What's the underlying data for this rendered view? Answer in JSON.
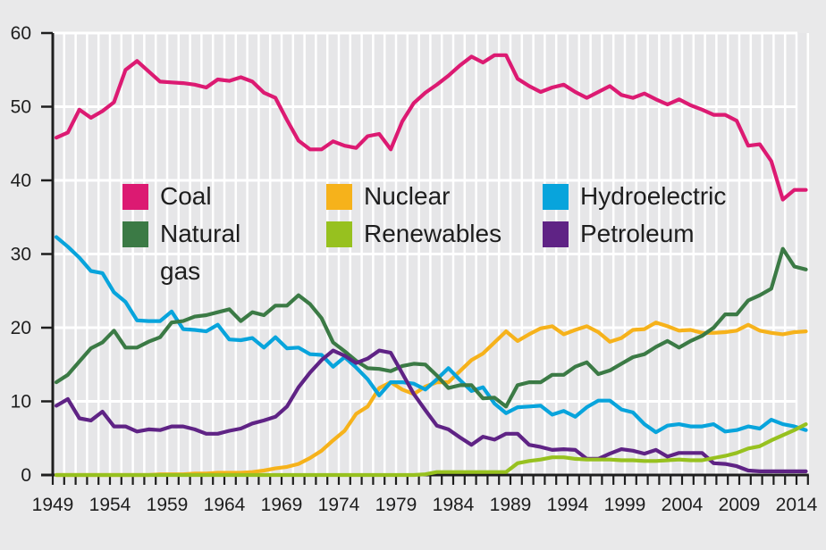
{
  "chart_data": {
    "type": "line",
    "title": "",
    "xlabel": "",
    "ylabel": "",
    "xlim": [
      1949,
      2015
    ],
    "ylim": [
      0,
      60
    ],
    "grid": true,
    "legend_position": "center-top (inside plot, three columns)",
    "x_start_year": 1949,
    "x_tick_labels": [
      "1949",
      "1954",
      "1959",
      "1964",
      "1969",
      "1974",
      "1979",
      "1984",
      "1989",
      "1994",
      "1999",
      "2004",
      "2009",
      "2014"
    ],
    "y_tick_labels": [
      "0",
      "10",
      "20",
      "30",
      "40",
      "50",
      "60"
    ],
    "series": [
      {
        "name": "Coal",
        "color": "#dc1a72",
        "values": [
          45.8,
          46.5,
          49.6,
          48.5,
          49.4,
          50.6,
          55.0,
          56.2,
          54.8,
          53.4,
          53.3,
          53.2,
          53.0,
          52.6,
          53.7,
          53.5,
          54.0,
          53.4,
          51.9,
          51.2,
          48.2,
          45.4,
          44.2,
          44.2,
          45.3,
          44.7,
          44.4,
          46.0,
          46.3,
          44.2,
          48.0,
          50.5,
          51.9,
          53.0,
          54.2,
          55.6,
          56.8,
          56.0,
          57.0,
          57.0,
          53.8,
          52.8,
          52.0,
          52.6,
          53.0,
          52.0,
          51.2,
          52.0,
          52.8,
          51.6,
          51.2,
          51.8,
          51.0,
          50.3,
          51.0,
          50.2,
          49.6,
          48.9,
          48.9,
          48.1,
          44.7,
          44.9,
          42.6,
          37.4,
          38.7,
          38.7
        ]
      },
      {
        "name": "Natural gas",
        "color": "#3b7a45",
        "values": [
          12.6,
          13.6,
          15.4,
          17.2,
          18.0,
          19.6,
          17.3,
          17.3,
          18.1,
          18.7,
          20.7,
          20.9,
          21.5,
          21.7,
          22.1,
          22.5,
          20.9,
          22.1,
          21.7,
          23.0,
          23.0,
          24.4,
          23.2,
          21.3,
          18.0,
          16.8,
          15.5,
          14.5,
          14.4,
          14.1,
          14.8,
          15.1,
          15.0,
          13.5,
          11.8,
          12.2,
          12.2,
          10.4,
          10.5,
          9.3,
          12.2,
          12.6,
          12.6,
          13.6,
          13.6,
          14.7,
          15.3,
          13.7,
          14.2,
          15.1,
          16.0,
          16.4,
          17.4,
          18.2,
          17.3,
          18.2,
          18.9,
          20.0,
          21.8,
          21.8,
          23.7,
          24.4,
          25.3,
          30.7,
          28.3,
          27.9
        ]
      },
      {
        "name": "Nuclear",
        "color": "#f6b21b",
        "values": [
          0,
          0,
          0,
          0,
          0,
          0,
          0,
          0,
          0,
          0.1,
          0.1,
          0.1,
          0.2,
          0.2,
          0.3,
          0.3,
          0.3,
          0.4,
          0.6,
          0.9,
          1.1,
          1.5,
          2.3,
          3.3,
          4.7,
          6.0,
          8.3,
          9.3,
          11.8,
          12.6,
          11.6,
          11.0,
          12.0,
          12.6,
          12.6,
          14.1,
          15.6,
          16.5,
          18.0,
          19.5,
          18.2,
          19.1,
          19.9,
          20.2,
          19.1,
          19.7,
          20.2,
          19.4,
          18.1,
          18.6,
          19.7,
          19.8,
          20.7,
          20.2,
          19.6,
          19.7,
          19.3,
          19.3,
          19.4,
          19.6,
          20.4,
          19.6,
          19.3,
          19.1,
          19.4,
          19.5
        ]
      },
      {
        "name": "Renewables",
        "color": "#97c11f",
        "values": [
          0,
          0,
          0,
          0,
          0,
          0,
          0,
          0,
          0,
          0,
          0,
          0,
          0,
          0,
          0,
          0,
          0,
          0,
          0,
          0,
          0,
          0,
          0,
          0,
          0,
          0,
          0,
          0,
          0,
          0,
          0,
          0,
          0.1,
          0.4,
          0.4,
          0.4,
          0.4,
          0.4,
          0.4,
          0.4,
          1.6,
          1.9,
          2.1,
          2.4,
          2.4,
          2.2,
          2.1,
          2.1,
          2.1,
          2.0,
          2.0,
          1.9,
          1.9,
          2.0,
          2.1,
          2.0,
          2.0,
          2.3,
          2.6,
          3.0,
          3.6,
          3.9,
          4.7,
          5.4,
          6.1,
          6.9
        ]
      },
      {
        "name": "Hydroelectric",
        "color": "#08a4dc",
        "values": [
          32.3,
          31.0,
          29.5,
          27.7,
          27.4,
          24.8,
          23.5,
          21.0,
          20.9,
          20.9,
          22.2,
          19.8,
          19.7,
          19.5,
          20.4,
          18.4,
          18.3,
          18.6,
          17.3,
          18.7,
          17.2,
          17.3,
          16.4,
          16.3,
          14.7,
          16.0,
          14.6,
          13.0,
          10.8,
          12.6,
          12.6,
          12.4,
          11.6,
          13.0,
          14.5,
          12.9,
          11.4,
          11.9,
          9.7,
          8.4,
          9.2,
          9.3,
          9.4,
          8.2,
          8.7,
          7.9,
          9.2,
          10.1,
          10.1,
          8.9,
          8.5,
          6.9,
          5.8,
          6.7,
          6.9,
          6.6,
          6.6,
          6.9,
          5.9,
          6.1,
          6.6,
          6.3,
          7.5,
          6.9,
          6.6,
          6.1
        ]
      },
      {
        "name": "Petroleum",
        "color": "#5f2385",
        "values": [
          9.4,
          10.3,
          7.7,
          7.4,
          8.6,
          6.6,
          6.6,
          5.9,
          6.2,
          6.1,
          6.6,
          6.6,
          6.2,
          5.6,
          5.6,
          6.0,
          6.3,
          7.0,
          7.4,
          7.9,
          9.3,
          11.9,
          13.9,
          15.6,
          16.9,
          16.2,
          15.2,
          15.8,
          16.9,
          16.6,
          13.8,
          11.0,
          8.8,
          6.7,
          6.2,
          5.1,
          4.1,
          5.2,
          4.8,
          5.6,
          5.6,
          4.1,
          3.8,
          3.4,
          3.5,
          3.4,
          2.2,
          2.2,
          2.9,
          3.5,
          3.3,
          2.9,
          3.4,
          2.5,
          3.0,
          3.0,
          3.0,
          1.6,
          1.5,
          1.2,
          0.6,
          0.5,
          0.5,
          0.5,
          0.5,
          0.5
        ]
      }
    ]
  }
}
